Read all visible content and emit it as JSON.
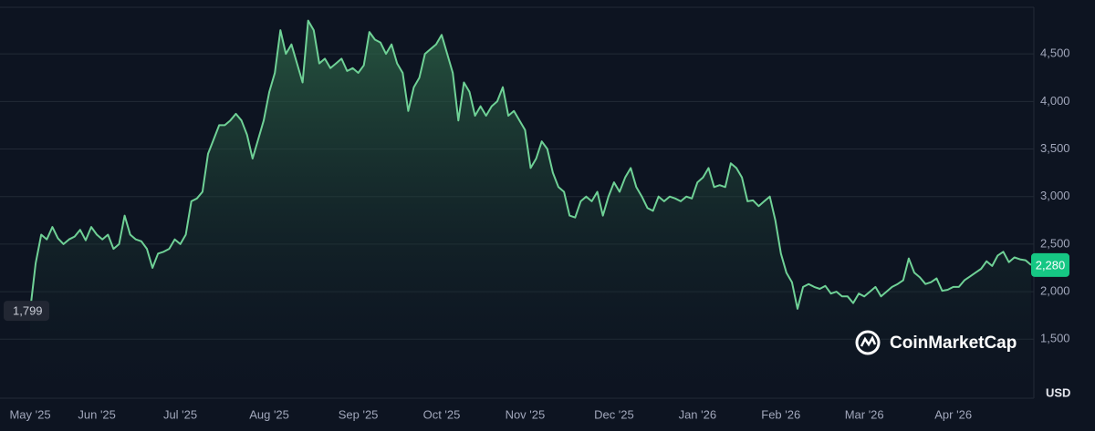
{
  "chart_data": {
    "type": "line",
    "brand": "CoinMarketCap",
    "y_unit": "USD",
    "color": "#6fd196",
    "background": "#0d1421",
    "grid": true,
    "ylim": [
      880,
      4990
    ],
    "yticks": [
      {
        "value": 1500,
        "label": "1,500"
      },
      {
        "value": 2000,
        "label": "2,000"
      },
      {
        "value": 2500,
        "label": "2,500"
      },
      {
        "value": 3000,
        "label": "3,000"
      },
      {
        "value": 3500,
        "label": "3,500"
      },
      {
        "value": 4000,
        "label": "4,000"
      },
      {
        "value": 4500,
        "label": "4,500"
      }
    ],
    "start_label": {
      "value": 1799,
      "label": "1,799"
    },
    "price_label": {
      "value": 2280,
      "label": "2,280"
    },
    "categories": [
      "May '25",
      null,
      null,
      null,
      null,
      null,
      null,
      null,
      null,
      null,
      null,
      null,
      "Jun '25",
      null,
      null,
      null,
      null,
      null,
      null,
      null,
      null,
      null,
      null,
      null,
      null,
      null,
      null,
      "Jul '25",
      null,
      null,
      null,
      null,
      null,
      null,
      null,
      null,
      null,
      null,
      null,
      null,
      null,
      null,
      null,
      "Aug '25",
      null,
      null,
      null,
      null,
      null,
      null,
      null,
      null,
      null,
      null,
      null,
      null,
      null,
      null,
      null,
      "Sep '25",
      null,
      null,
      null,
      null,
      null,
      null,
      null,
      null,
      null,
      null,
      null,
      null,
      null,
      null,
      "Oct '25",
      null,
      null,
      null,
      null,
      null,
      null,
      null,
      null,
      null,
      null,
      null,
      null,
      null,
      null,
      "Nov '25",
      null,
      null,
      null,
      null,
      null,
      null,
      null,
      null,
      null,
      null,
      null,
      null,
      null,
      null,
      null,
      "Dec '25",
      null,
      null,
      null,
      null,
      null,
      null,
      null,
      null,
      null,
      null,
      null,
      null,
      null,
      null,
      "Jan '26",
      null,
      null,
      null,
      null,
      null,
      null,
      null,
      null,
      null,
      null,
      null,
      null,
      null,
      null,
      "Feb '26",
      null,
      null,
      null,
      null,
      null,
      null,
      null,
      null,
      null,
      null,
      null,
      null,
      null,
      null,
      "Mar '26",
      null,
      null,
      null,
      null,
      null,
      null,
      null,
      null,
      null,
      null,
      null,
      null,
      null,
      null,
      null,
      "Apr '26",
      null,
      null,
      null,
      null,
      null,
      null,
      null,
      null,
      null,
      null,
      null,
      null,
      null,
      null
    ],
    "values": [
      1799,
      2300,
      2600,
      2550,
      2680,
      2560,
      2500,
      2550,
      2580,
      2650,
      2540,
      2680,
      2600,
      2550,
      2600,
      2450,
      2500,
      2800,
      2600,
      2550,
      2530,
      2450,
      2250,
      2400,
      2420,
      2450,
      2550,
      2500,
      2600,
      2950,
      2980,
      3050,
      3450,
      3600,
      3750,
      3750,
      3800,
      3870,
      3800,
      3650,
      3400,
      3600,
      3800,
      4100,
      4300,
      4750,
      4500,
      4600,
      4400,
      4200,
      4850,
      4750,
      4400,
      4450,
      4350,
      4400,
      4450,
      4320,
      4350,
      4300,
      4380,
      4730,
      4650,
      4620,
      4500,
      4600,
      4400,
      4300,
      3900,
      4150,
      4250,
      4500,
      4550,
      4600,
      4700,
      4500,
      4300,
      3800,
      4200,
      4100,
      3850,
      3950,
      3850,
      3950,
      4000,
      4150,
      3850,
      3900,
      3800,
      3700,
      3300,
      3400,
      3580,
      3500,
      3250,
      3100,
      3050,
      2800,
      2780,
      2950,
      3000,
      2950,
      3050,
      2800,
      3000,
      3150,
      3050,
      3200,
      3300,
      3100,
      3000,
      2880,
      2850,
      3000,
      2950,
      3000,
      2980,
      2950,
      3000,
      2980,
      3150,
      3200,
      3300,
      3100,
      3120,
      3100,
      3350,
      3300,
      3200,
      2950,
      2960,
      2900,
      2950,
      3000,
      2750,
      2400,
      2200,
      2100,
      1820,
      2050,
      2080,
      2050,
      2030,
      2060,
      1980,
      2000,
      1950,
      1950,
      1880,
      1980,
      1950,
      2000,
      2050,
      1950,
      2000,
      2050,
      2080,
      2120,
      2350,
      2200,
      2150,
      2080,
      2100,
      2140,
      2010,
      2020,
      2050,
      2050,
      2120,
      2160,
      2200,
      2240,
      2320,
      2270,
      2380,
      2420,
      2310,
      2360,
      2340,
      2330,
      2280
    ]
  }
}
